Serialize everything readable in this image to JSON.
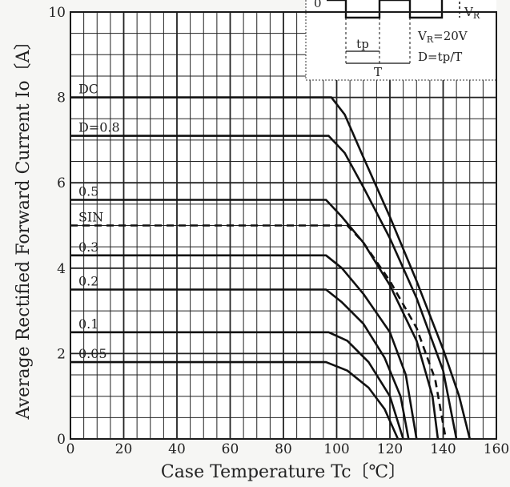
{
  "chart_data": {
    "type": "line",
    "title": "",
    "xlabel": "Case Temperature  Tc〔℃〕",
    "ylabel": "Average Rectified Forward Current  Io〔A〕",
    "xlim": [
      0,
      160
    ],
    "ylim": [
      0,
      10
    ],
    "x_ticks": [
      0,
      20,
      40,
      60,
      80,
      100,
      120,
      140,
      160
    ],
    "y_ticks": [
      0,
      2,
      4,
      6,
      8,
      10
    ],
    "grid": true,
    "series": [
      {
        "name": "DC",
        "style": "solid",
        "points": [
          [
            0,
            8.0
          ],
          [
            98,
            8.0
          ],
          [
            103,
            7.6
          ],
          [
            110,
            6.6
          ],
          [
            120,
            5.2
          ],
          [
            130,
            3.7
          ],
          [
            140,
            2.1
          ],
          [
            146,
            1.0
          ],
          [
            150,
            0
          ]
        ]
      },
      {
        "name": "D=0.8",
        "style": "solid",
        "points": [
          [
            0,
            7.1
          ],
          [
            97,
            7.1
          ],
          [
            103,
            6.7
          ],
          [
            110,
            5.9
          ],
          [
            120,
            4.7
          ],
          [
            130,
            3.3
          ],
          [
            140,
            1.6
          ],
          [
            145,
            0
          ]
        ]
      },
      {
        "name": "0.5",
        "style": "solid",
        "points": [
          [
            0,
            5.6
          ],
          [
            96,
            5.6
          ],
          [
            102,
            5.2
          ],
          [
            110,
            4.6
          ],
          [
            120,
            3.6
          ],
          [
            130,
            2.3
          ],
          [
            136,
            1.0
          ],
          [
            138,
            0
          ]
        ]
      },
      {
        "name": "SIN",
        "style": "dashed",
        "points": [
          [
            0,
            5.0
          ],
          [
            104,
            5.0
          ],
          [
            110,
            4.6
          ],
          [
            120,
            3.7
          ],
          [
            130,
            2.6
          ],
          [
            137,
            1.4
          ],
          [
            141,
            0
          ]
        ]
      },
      {
        "name": "0.3",
        "style": "solid",
        "points": [
          [
            0,
            4.3
          ],
          [
            96,
            4.3
          ],
          [
            102,
            4.0
          ],
          [
            110,
            3.4
          ],
          [
            120,
            2.5
          ],
          [
            126,
            1.5
          ],
          [
            130,
            0
          ]
        ]
      },
      {
        "name": "0.2",
        "style": "solid",
        "points": [
          [
            0,
            3.5
          ],
          [
            96,
            3.5
          ],
          [
            102,
            3.2
          ],
          [
            110,
            2.7
          ],
          [
            118,
            1.9
          ],
          [
            124,
            1.0
          ],
          [
            127,
            0
          ]
        ]
      },
      {
        "name": "0.1",
        "style": "solid",
        "points": [
          [
            0,
            2.5
          ],
          [
            97,
            2.5
          ],
          [
            104,
            2.3
          ],
          [
            112,
            1.8
          ],
          [
            120,
            1.0
          ],
          [
            125,
            0
          ]
        ]
      },
      {
        "name": "0.05",
        "style": "solid",
        "points": [
          [
            0,
            1.8
          ],
          [
            96,
            1.8
          ],
          [
            104,
            1.6
          ],
          [
            112,
            1.2
          ],
          [
            118,
            0.7
          ],
          [
            123,
            0
          ]
        ]
      }
    ],
    "inset": {
      "axis_label": "0",
      "vr_label": "V",
      "vr_sub": "R",
      "tp_label": "tp",
      "period_label": "T",
      "condition_prefix": "V",
      "condition_sub": "R",
      "condition_value": "=20V",
      "duty_formula": "D=tp/T"
    }
  }
}
